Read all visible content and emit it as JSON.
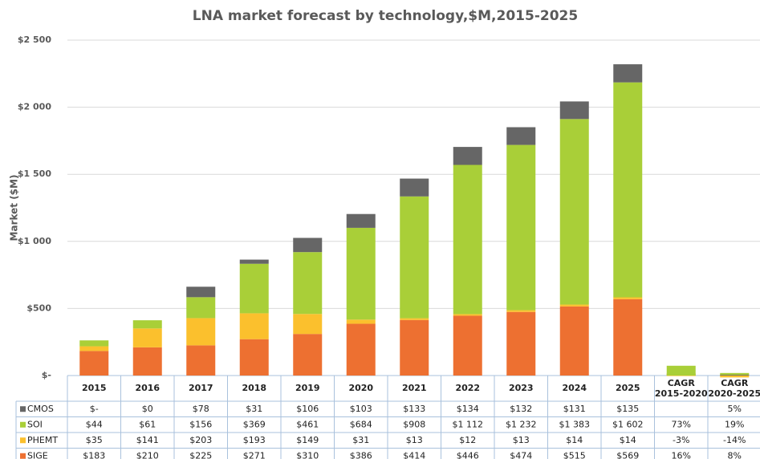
{
  "chart_data": {
    "type": "stacked_bar",
    "title": "LNA market forecast by technology,$M,2015-2025",
    "ylabel": "Market ($M)",
    "categories": [
      "2015",
      "2016",
      "2017",
      "2018",
      "2019",
      "2020",
      "2021",
      "2022",
      "2023",
      "2024",
      "2025"
    ],
    "cagr_headers": [
      [
        "CAGR",
        "2015-2020"
      ],
      [
        "CAGR",
        "2020-2025"
      ]
    ],
    "ylim": [
      0,
      2500
    ],
    "yticks": [
      {
        "value": 0,
        "label": "$-"
      },
      {
        "value": 500,
        "label": "$500"
      },
      {
        "value": 1000,
        "label": "$1 000"
      },
      {
        "value": 1500,
        "label": "$1 500"
      },
      {
        "value": 2000,
        "label": "$2 000"
      },
      {
        "value": 2500,
        "label": "$2 500"
      }
    ],
    "grid": true,
    "series": [
      {
        "name": "SIGE",
        "color": "#ed7031",
        "values": [
          183,
          210,
          225,
          271,
          310,
          386,
          414,
          446,
          474,
          515,
          569
        ],
        "value_labels": [
          "$183",
          "$210",
          "$225",
          "$271",
          "$310",
          "$386",
          "$414",
          "$446",
          "$474",
          "$515",
          "$569"
        ],
        "cagr": [
          16,
          8
        ],
        "cagr_labels": [
          "16%",
          "8%"
        ]
      },
      {
        "name": "PHEMT",
        "color": "#fbc02d",
        "values": [
          35,
          141,
          203,
          193,
          149,
          31,
          13,
          12,
          13,
          14,
          14
        ],
        "value_labels": [
          "$35",
          "$141",
          "$203",
          "$193",
          "$149",
          "$31",
          "$13",
          "$12",
          "$13",
          "$14",
          "$14"
        ],
        "cagr": [
          -3,
          -14
        ],
        "cagr_labels": [
          "-3%",
          "-14%"
        ]
      },
      {
        "name": "SOI",
        "color": "#a9cf38",
        "values": [
          44,
          61,
          156,
          369,
          461,
          684,
          908,
          1112,
          1232,
          1383,
          1602
        ],
        "value_labels": [
          "$44",
          "$61",
          "$156",
          "$369",
          "$461",
          "$684",
          "$908",
          "$1 112",
          "$1 232",
          "$1 383",
          "$1 602"
        ],
        "cagr": [
          73,
          19
        ],
        "cagr_labels": [
          "73%",
          "19%"
        ]
      },
      {
        "name": "CMOS",
        "color": "#666666",
        "values": [
          0,
          0,
          78,
          31,
          106,
          103,
          133,
          134,
          132,
          131,
          135
        ],
        "value_labels": [
          "$-",
          "$0",
          "$78",
          "$31",
          "$106",
          "$103",
          "$133",
          "$134",
          "$132",
          "$131",
          "$135"
        ],
        "cagr": [
          null,
          5
        ],
        "cagr_labels": [
          null,
          "5%"
        ]
      }
    ]
  }
}
